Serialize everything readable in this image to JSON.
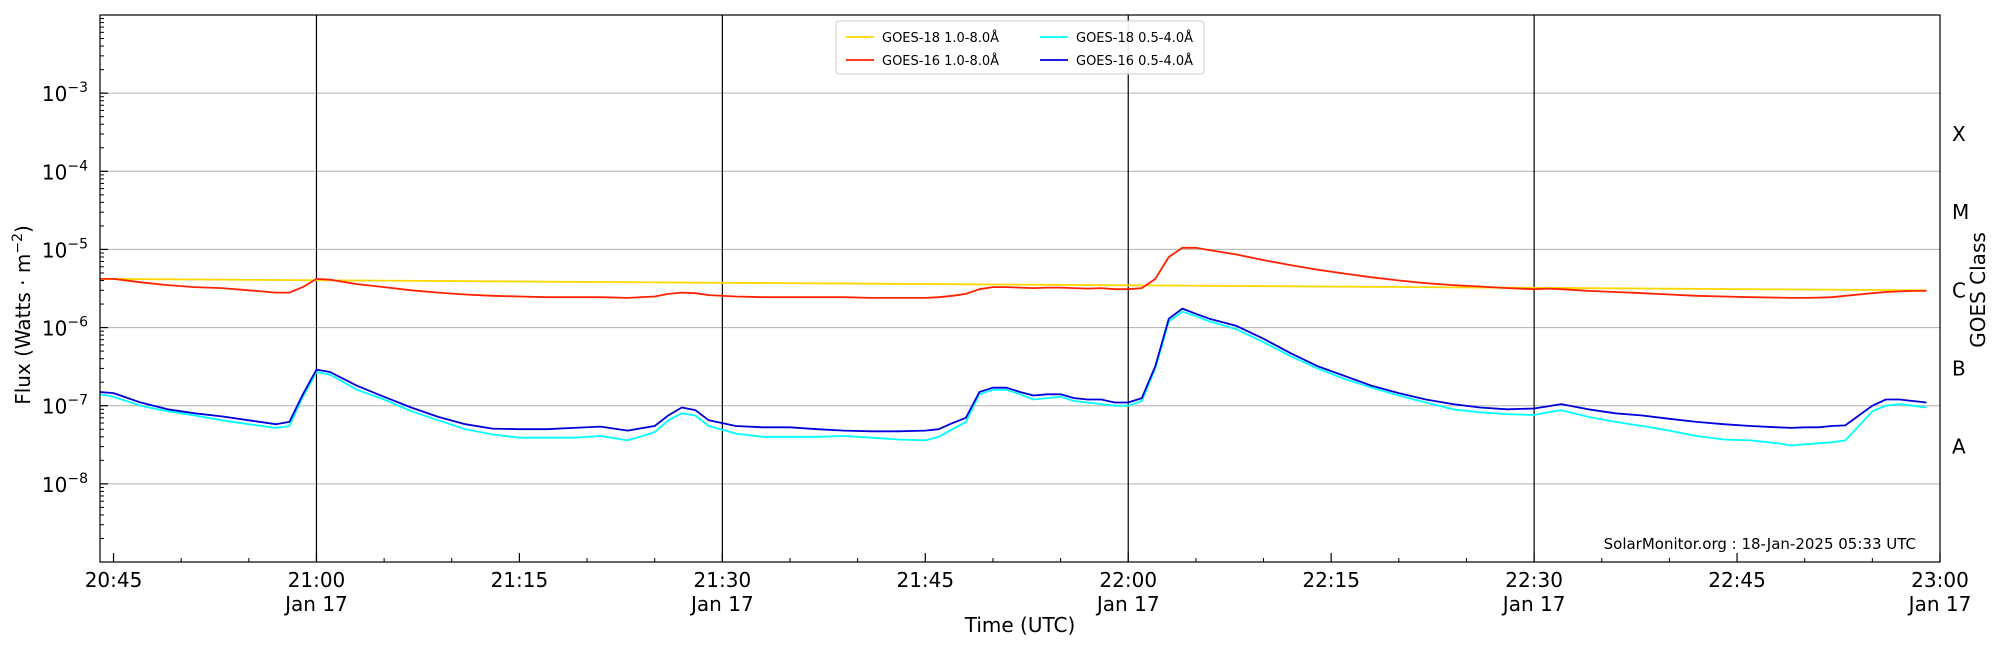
{
  "chart_data": {
    "type": "line",
    "ylabel_main": "Flux (Watts · m",
    "ylabel_sup": "−2",
    "ylabel_end": ")",
    "xlabel": "Time (UTC)",
    "right_label": "GOES Class",
    "footer": "SolarMonitor.org : 18-Jan-2025 05:33 UTC",
    "y_scale": "log",
    "ylim": [
      1e-09,
      0.01
    ],
    "xlim": [
      "20:44",
      "23:00"
    ],
    "grid": "horizontal",
    "legend_position": "top-center",
    "y_ticks": [
      {
        "value": 1e-08,
        "base": "10",
        "exp": "−8"
      },
      {
        "value": 1e-07,
        "base": "10",
        "exp": "−7"
      },
      {
        "value": 1e-06,
        "base": "10",
        "exp": "−6"
      },
      {
        "value": 1e-05,
        "base": "10",
        "exp": "−5"
      },
      {
        "value": 0.0001,
        "base": "10",
        "exp": "−4"
      },
      {
        "value": 0.001,
        "base": "10",
        "exp": "−3"
      }
    ],
    "x_ticks": [
      {
        "time": "20:45",
        "label": "20:45",
        "date": ""
      },
      {
        "time": "21:00",
        "label": "21:00",
        "date": "Jan 17"
      },
      {
        "time": "21:15",
        "label": "21:15",
        "date": ""
      },
      {
        "time": "21:30",
        "label": "21:30",
        "date": "Jan 17"
      },
      {
        "time": "21:45",
        "label": "21:45",
        "date": ""
      },
      {
        "time": "22:00",
        "label": "22:00",
        "date": "Jan 17"
      },
      {
        "time": "22:15",
        "label": "22:15",
        "date": ""
      },
      {
        "time": "22:30",
        "label": "22:30",
        "date": "Jan 17"
      },
      {
        "time": "22:45",
        "label": "22:45",
        "date": ""
      },
      {
        "time": "23:00",
        "label": "23:00",
        "date": "Jan 17"
      }
    ],
    "vertical_lines": [
      "21:00",
      "21:30",
      "22:00",
      "22:30"
    ],
    "class_levels": [
      {
        "label": "A",
        "value": 3e-08
      },
      {
        "label": "B",
        "value": 3e-07
      },
      {
        "label": "C",
        "value": 3e-06
      },
      {
        "label": "M",
        "value": 3e-05
      },
      {
        "label": "X",
        "value": 0.0003
      }
    ],
    "series": [
      {
        "name": "GOES-18 1.0-8.0Å",
        "color": "#FFD700",
        "x": [
          "20:44",
          "22:59"
        ],
        "values": [
          4.2e-06,
          3e-06
        ]
      },
      {
        "name": "GOES-18 0.5-4.0Å",
        "color": "#00FFFF",
        "x": [
          "20:44",
          "20:45",
          "20:47",
          "20:49",
          "20:51",
          "20:53",
          "20:55",
          "20:57",
          "20:58",
          "20:59",
          "21:00",
          "21:01",
          "21:03",
          "21:05",
          "21:07",
          "21:09",
          "21:11",
          "21:13",
          "21:15",
          "21:17",
          "21:19",
          "21:21",
          "21:23",
          "21:25",
          "21:26",
          "21:27",
          "21:28",
          "21:29",
          "21:31",
          "21:33",
          "21:35",
          "21:37",
          "21:39",
          "21:41",
          "21:43",
          "21:45",
          "21:46",
          "21:47",
          "21:48",
          "21:49",
          "21:50",
          "21:51",
          "21:52",
          "21:53",
          "21:54",
          "21:55",
          "21:56",
          "21:57",
          "21:58",
          "21:59",
          "22:00",
          "22:01",
          "22:02",
          "22:03",
          "22:04",
          "22:05",
          "22:06",
          "22:08",
          "22:10",
          "22:12",
          "22:14",
          "22:16",
          "22:18",
          "22:20",
          "22:22",
          "22:24",
          "22:26",
          "22:28",
          "22:30",
          "22:31",
          "22:32",
          "22:34",
          "22:36",
          "22:38",
          "22:40",
          "22:42",
          "22:44",
          "22:46",
          "22:48",
          "22:49",
          "22:50",
          "22:51",
          "22:52",
          "22:53",
          "22:54",
          "22:55",
          "22:56",
          "22:57",
          "22:58",
          "22:59"
        ],
        "values": [
          1.4e-07,
          1.3e-07,
          1e-07,
          8.5e-08,
          7.5e-08,
          6.5e-08,
          5.8e-08,
          5.2e-08,
          5.5e-08,
          1.3e-07,
          2.7e-07,
          2.5e-07,
          1.6e-07,
          1.2e-07,
          8.5e-08,
          6.5e-08,
          5e-08,
          4.3e-08,
          3.9e-08,
          3.9e-08,
          3.9e-08,
          4.1e-08,
          3.6e-08,
          4.6e-08,
          6.5e-08,
          8e-08,
          7.5e-08,
          5.5e-08,
          4.4e-08,
          4e-08,
          4e-08,
          4e-08,
          4.1e-08,
          3.9e-08,
          3.7e-08,
          3.6e-08,
          4e-08,
          5e-08,
          6.2e-08,
          1.4e-07,
          1.6e-07,
          1.6e-07,
          1.4e-07,
          1.2e-07,
          1.25e-07,
          1.3e-07,
          1.15e-07,
          1.1e-07,
          1.05e-07,
          1e-07,
          1e-07,
          1.15e-07,
          3e-07,
          1.2e-06,
          1.6e-06,
          1.4e-06,
          1.2e-06,
          9.5e-07,
          6.5e-07,
          4.3e-07,
          3e-07,
          2.2e-07,
          1.7e-07,
          1.35e-07,
          1.1e-07,
          9e-08,
          8.2e-08,
          7.8e-08,
          7.6e-08,
          8.2e-08,
          8.8e-08,
          7.2e-08,
          6.2e-08,
          5.5e-08,
          4.8e-08,
          4.1e-08,
          3.7e-08,
          3.6e-08,
          3.3e-08,
          3.1e-08,
          3.2e-08,
          3.3e-08,
          3.4e-08,
          3.6e-08,
          5.5e-08,
          8.5e-08,
          1e-07,
          1.05e-07,
          1e-07,
          9.5e-08
        ]
      },
      {
        "name": "GOES-16 1.0-8.0Å",
        "color": "#FF2200",
        "x": [
          "20:44",
          "20:45",
          "20:47",
          "20:49",
          "20:51",
          "20:53",
          "20:55",
          "20:57",
          "20:58",
          "20:59",
          "21:00",
          "21:01",
          "21:03",
          "21:05",
          "21:07",
          "21:09",
          "21:11",
          "21:13",
          "21:15",
          "21:17",
          "21:19",
          "21:21",
          "21:23",
          "21:25",
          "21:26",
          "21:27",
          "21:28",
          "21:29",
          "21:31",
          "21:33",
          "21:35",
          "21:37",
          "21:39",
          "21:41",
          "21:43",
          "21:45",
          "21:46",
          "21:47",
          "21:48",
          "21:49",
          "21:50",
          "21:51",
          "21:52",
          "21:53",
          "21:54",
          "21:55",
          "21:56",
          "21:57",
          "21:58",
          "21:59",
          "22:00",
          "22:01",
          "22:02",
          "22:03",
          "22:04",
          "22:05",
          "22:06",
          "22:08",
          "22:10",
          "22:12",
          "22:14",
          "22:16",
          "22:18",
          "22:20",
          "22:22",
          "22:24",
          "22:26",
          "22:28",
          "22:30",
          "22:31",
          "22:32",
          "22:34",
          "22:36",
          "22:38",
          "22:40",
          "22:42",
          "22:44",
          "22:46",
          "22:48",
          "22:49",
          "22:50",
          "22:51",
          "22:52",
          "22:53",
          "22:54",
          "22:55",
          "22:56",
          "22:57",
          "22:58",
          "22:59"
        ],
        "values": [
          4.2e-06,
          4.2e-06,
          3.8e-06,
          3.5e-06,
          3.3e-06,
          3.2e-06,
          3e-06,
          2.8e-06,
          2.8e-06,
          3.3e-06,
          4.2e-06,
          4.1e-06,
          3.6e-06,
          3.3e-06,
          3e-06,
          2.8e-06,
          2.65e-06,
          2.55e-06,
          2.5e-06,
          2.45e-06,
          2.45e-06,
          2.45e-06,
          2.4e-06,
          2.5e-06,
          2.7e-06,
          2.8e-06,
          2.75e-06,
          2.6e-06,
          2.5e-06,
          2.45e-06,
          2.45e-06,
          2.45e-06,
          2.45e-06,
          2.4e-06,
          2.4e-06,
          2.4e-06,
          2.45e-06,
          2.55e-06,
          2.7e-06,
          3.1e-06,
          3.3e-06,
          3.3e-06,
          3.25e-06,
          3.2e-06,
          3.25e-06,
          3.25e-06,
          3.2e-06,
          3.15e-06,
          3.2e-06,
          3.1e-06,
          3.1e-06,
          3.2e-06,
          4.2e-06,
          8e-06,
          1.05e-05,
          1.05e-05,
          9.8e-06,
          8.6e-06,
          7.3e-06,
          6.3e-06,
          5.5e-06,
          4.9e-06,
          4.4e-06,
          4e-06,
          3.7e-06,
          3.5e-06,
          3.35e-06,
          3.2e-06,
          3.1e-06,
          3.15e-06,
          3.1e-06,
          2.95e-06,
          2.85e-06,
          2.75e-06,
          2.65e-06,
          2.55e-06,
          2.5e-06,
          2.45e-06,
          2.42e-06,
          2.4e-06,
          2.4e-06,
          2.42e-06,
          2.45e-06,
          2.55e-06,
          2.65e-06,
          2.75e-06,
          2.85e-06,
          2.9e-06,
          2.95e-06,
          2.95e-06
        ]
      },
      {
        "name": "GOES-16 0.5-4.0Å",
        "color": "#0000DD",
        "x": [
          "20:44",
          "20:45",
          "20:47",
          "20:49",
          "20:51",
          "20:53",
          "20:55",
          "20:57",
          "20:58",
          "20:59",
          "21:00",
          "21:01",
          "21:03",
          "21:05",
          "21:07",
          "21:09",
          "21:11",
          "21:13",
          "21:15",
          "21:17",
          "21:19",
          "21:21",
          "21:23",
          "21:25",
          "21:26",
          "21:27",
          "21:28",
          "21:29",
          "21:31",
          "21:33",
          "21:35",
          "21:37",
          "21:39",
          "21:41",
          "21:43",
          "21:45",
          "21:46",
          "21:47",
          "21:48",
          "21:49",
          "21:50",
          "21:51",
          "21:52",
          "21:53",
          "21:54",
          "21:55",
          "21:56",
          "21:57",
          "21:58",
          "21:59",
          "22:00",
          "22:01",
          "22:02",
          "22:03",
          "22:04",
          "22:05",
          "22:06",
          "22:08",
          "22:10",
          "22:12",
          "22:14",
          "22:16",
          "22:18",
          "22:20",
          "22:22",
          "22:24",
          "22:26",
          "22:28",
          "22:30",
          "22:31",
          "22:32",
          "22:34",
          "22:36",
          "22:38",
          "22:40",
          "22:42",
          "22:44",
          "22:46",
          "22:48",
          "22:49",
          "22:50",
          "22:51",
          "22:52",
          "22:53",
          "22:54",
          "22:55",
          "22:56",
          "22:57",
          "22:58",
          "22:59"
        ],
        "values": [
          1.5e-07,
          1.45e-07,
          1.1e-07,
          9e-08,
          8e-08,
          7.3e-08,
          6.5e-08,
          5.8e-08,
          6.2e-08,
          1.4e-07,
          2.9e-07,
          2.7e-07,
          1.8e-07,
          1.3e-07,
          9.5e-08,
          7.2e-08,
          5.8e-08,
          5.1e-08,
          5e-08,
          5e-08,
          5.2e-08,
          5.4e-08,
          4.8e-08,
          5.5e-08,
          7.5e-08,
          9.5e-08,
          8.8e-08,
          6.5e-08,
          5.5e-08,
          5.3e-08,
          5.3e-08,
          5e-08,
          4.8e-08,
          4.7e-08,
          4.7e-08,
          4.8e-08,
          5e-08,
          6e-08,
          7e-08,
          1.5e-07,
          1.7e-07,
          1.7e-07,
          1.5e-07,
          1.35e-07,
          1.4e-07,
          1.4e-07,
          1.25e-07,
          1.2e-07,
          1.2e-07,
          1.1e-07,
          1.1e-07,
          1.25e-07,
          3.2e-07,
          1.3e-06,
          1.75e-06,
          1.5e-06,
          1.3e-06,
          1.05e-06,
          7.2e-07,
          4.7e-07,
          3.2e-07,
          2.4e-07,
          1.8e-07,
          1.45e-07,
          1.2e-07,
          1.05e-07,
          9.5e-08,
          9e-08,
          9.2e-08,
          9.8e-08,
          1.05e-07,
          9e-08,
          8e-08,
          7.5e-08,
          6.8e-08,
          6.2e-08,
          5.8e-08,
          5.5e-08,
          5.3e-08,
          5.2e-08,
          5.3e-08,
          5.3e-08,
          5.5e-08,
          5.6e-08,
          7.5e-08,
          1e-07,
          1.2e-07,
          1.2e-07,
          1.15e-07,
          1.1e-07
        ]
      }
    ]
  }
}
